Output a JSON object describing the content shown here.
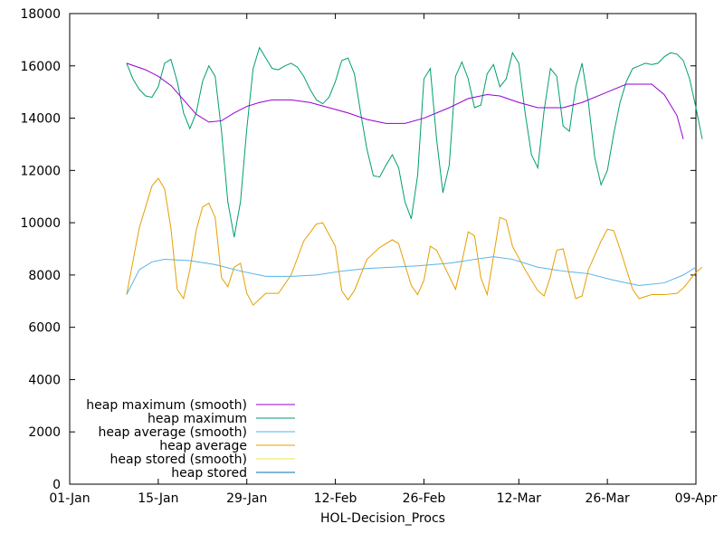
{
  "chart_data": {
    "type": "line",
    "xlabel": "HOL-Decision_Procs",
    "ylabel": "",
    "x_ticks": [
      "01-Jan",
      "15-Jan",
      "29-Jan",
      "12-Feb",
      "26-Feb",
      "12-Mar",
      "26-Mar",
      "09-Apr"
    ],
    "y_ticks": [
      "0",
      "2000",
      "4000",
      "6000",
      "8000",
      "10000",
      "12000",
      "14000",
      "16000",
      "18000"
    ],
    "xlim": [
      "01-Jan",
      "09-Apr"
    ],
    "ylim": [
      0,
      18000
    ],
    "legend_position": "bottom-left",
    "grid": false,
    "series": [
      {
        "name": "heap maximum (smooth)",
        "color": "#9400d3",
        "points": [
          [
            "10-Jan",
            16100
          ],
          [
            "13-Jan",
            15850
          ],
          [
            "15-Jan",
            15600
          ],
          [
            "17-Jan",
            15250
          ],
          [
            "19-Jan",
            14700
          ],
          [
            "21-Jan",
            14150
          ],
          [
            "23-Jan",
            13850
          ],
          [
            "25-Jan",
            13900
          ],
          [
            "27-Jan",
            14200
          ],
          [
            "29-Jan",
            14450
          ],
          [
            "31-Jan",
            14600
          ],
          [
            "02-Feb",
            14700
          ],
          [
            "05-Feb",
            14700
          ],
          [
            "08-Feb",
            14600
          ],
          [
            "11-Feb",
            14400
          ],
          [
            "14-Feb",
            14200
          ],
          [
            "17-Feb",
            13950
          ],
          [
            "20-Feb",
            13800
          ],
          [
            "23-Feb",
            13800
          ],
          [
            "26-Feb",
            14000
          ],
          [
            "01-Mar",
            14400
          ],
          [
            "04-Mar",
            14750
          ],
          [
            "07-Mar",
            14900
          ],
          [
            "09-Mar",
            14850
          ],
          [
            "12-Mar",
            14600
          ],
          [
            "15-Mar",
            14400
          ],
          [
            "19-Mar",
            14400
          ],
          [
            "22-Mar",
            14600
          ],
          [
            "26-Mar",
            15000
          ],
          [
            "29-Mar",
            15300
          ],
          [
            "02-Apr",
            15300
          ],
          [
            "04-Apr",
            14900
          ],
          [
            "06-Apr",
            14100
          ],
          [
            "07-Apr",
            13200
          ]
        ]
      },
      {
        "name": "heap maximum",
        "color": "#009e73",
        "points": [
          [
            "10-Jan",
            16100
          ],
          [
            "11-Jan",
            15500
          ],
          [
            "12-Jan",
            15100
          ],
          [
            "13-Jan",
            14850
          ],
          [
            "14-Jan",
            14800
          ],
          [
            "15-Jan",
            15200
          ],
          [
            "16-Jan",
            16100
          ],
          [
            "17-Jan",
            16250
          ],
          [
            "18-Jan",
            15400
          ],
          [
            "19-Jan",
            14200
          ],
          [
            "20-Jan",
            13600
          ],
          [
            "21-Jan",
            14200
          ],
          [
            "22-Jan",
            15400
          ],
          [
            "23-Jan",
            16000
          ],
          [
            "24-Jan",
            15600
          ],
          [
            "25-Jan",
            13500
          ],
          [
            "26-Jan",
            10800
          ],
          [
            "27-Jan",
            9450
          ],
          [
            "28-Jan",
            10800
          ],
          [
            "29-Jan",
            13600
          ],
          [
            "30-Jan",
            15900
          ],
          [
            "31-Jan",
            16700
          ],
          [
            "01-Feb",
            16300
          ],
          [
            "02-Feb",
            15900
          ],
          [
            "03-Feb",
            15850
          ],
          [
            "04-Feb",
            16000
          ],
          [
            "05-Feb",
            16100
          ],
          [
            "06-Feb",
            15950
          ],
          [
            "07-Feb",
            15600
          ],
          [
            "08-Feb",
            15100
          ],
          [
            "09-Feb",
            14700
          ],
          [
            "10-Feb",
            14550
          ],
          [
            "11-Feb",
            14800
          ],
          [
            "12-Feb",
            15400
          ],
          [
            "13-Feb",
            16200
          ],
          [
            "14-Feb",
            16300
          ],
          [
            "15-Feb",
            15700
          ],
          [
            "16-Feb",
            14200
          ],
          [
            "17-Feb",
            12800
          ],
          [
            "18-Feb",
            11800
          ],
          [
            "19-Feb",
            11750
          ],
          [
            "20-Feb",
            12200
          ],
          [
            "21-Feb",
            12600
          ],
          [
            "22-Feb",
            12100
          ],
          [
            "23-Feb",
            10800
          ],
          [
            "24-Feb",
            10150
          ],
          [
            "25-Feb",
            11800
          ],
          [
            "26-Feb",
            15500
          ],
          [
            "27-Feb",
            15900
          ],
          [
            "28-Feb",
            13200
          ],
          [
            "29-Feb",
            11150
          ],
          [
            "01-Mar",
            12200
          ],
          [
            "02-Mar",
            15600
          ],
          [
            "03-Mar",
            16150
          ],
          [
            "04-Mar",
            15500
          ],
          [
            "05-Mar",
            14400
          ],
          [
            "06-Mar",
            14500
          ],
          [
            "07-Mar",
            15700
          ],
          [
            "08-Mar",
            16050
          ],
          [
            "09-Mar",
            15200
          ],
          [
            "10-Mar",
            15500
          ],
          [
            "11-Mar",
            16500
          ],
          [
            "12-Mar",
            16100
          ],
          [
            "13-Mar",
            14200
          ],
          [
            "14-Mar",
            12600
          ],
          [
            "15-Mar",
            12100
          ],
          [
            "16-Mar",
            14300
          ],
          [
            "17-Mar",
            15900
          ],
          [
            "18-Mar",
            15600
          ],
          [
            "19-Mar",
            13700
          ],
          [
            "20-Mar",
            13500
          ],
          [
            "21-Mar",
            15200
          ],
          [
            "22-Mar",
            16100
          ],
          [
            "23-Mar",
            14600
          ],
          [
            "24-Mar",
            12500
          ],
          [
            "25-Mar",
            11450
          ],
          [
            "26-Mar",
            12000
          ],
          [
            "27-Mar",
            13400
          ],
          [
            "28-Mar",
            14600
          ],
          [
            "29-Mar",
            15400
          ],
          [
            "30-Mar",
            15900
          ],
          [
            "31-Mar",
            16000
          ],
          [
            "01-Apr",
            16100
          ],
          [
            "02-Apr",
            16050
          ],
          [
            "03-Apr",
            16100
          ],
          [
            "04-Apr",
            16350
          ],
          [
            "05-Apr",
            16500
          ],
          [
            "06-Apr",
            16450
          ],
          [
            "07-Apr",
            16200
          ],
          [
            "08-Apr",
            15500
          ],
          [
            "09-Apr",
            14400
          ],
          [
            "10-Apr",
            13200
          ]
        ]
      },
      {
        "name": "heap average (smooth)",
        "color": "#56b4e9",
        "points": [
          [
            "10-Jan",
            7250
          ],
          [
            "12-Jan",
            8200
          ],
          [
            "14-Jan",
            8500
          ],
          [
            "16-Jan",
            8600
          ],
          [
            "20-Jan",
            8550
          ],
          [
            "24-Jan",
            8400
          ],
          [
            "28-Jan",
            8150
          ],
          [
            "01-Feb",
            7950
          ],
          [
            "05-Feb",
            7950
          ],
          [
            "09-Feb",
            8000
          ],
          [
            "13-Feb",
            8150
          ],
          [
            "17-Feb",
            8250
          ],
          [
            "21-Feb",
            8300
          ],
          [
            "25-Feb",
            8350
          ],
          [
            "01-Mar",
            8450
          ],
          [
            "05-Mar",
            8600
          ],
          [
            "08-Mar",
            8700
          ],
          [
            "11-Mar",
            8600
          ],
          [
            "15-Mar",
            8300
          ],
          [
            "19-Mar",
            8150
          ],
          [
            "23-Mar",
            8050
          ],
          [
            "27-Mar",
            7800
          ],
          [
            "31-Mar",
            7600
          ],
          [
            "04-Apr",
            7700
          ],
          [
            "07-Apr",
            8000
          ],
          [
            "09-Apr",
            8300
          ]
        ]
      },
      {
        "name": "heap average",
        "color": "#e69f00",
        "points": [
          [
            "10-Jan",
            7250
          ],
          [
            "12-Jan",
            9800
          ],
          [
            "14-Jan",
            11400
          ],
          [
            "15-Jan",
            11700
          ],
          [
            "16-Jan",
            11300
          ],
          [
            "17-Jan",
            9800
          ],
          [
            "18-Jan",
            7450
          ],
          [
            "19-Jan",
            7100
          ],
          [
            "20-Jan",
            8200
          ],
          [
            "21-Jan",
            9700
          ],
          [
            "22-Jan",
            10600
          ],
          [
            "23-Jan",
            10750
          ],
          [
            "24-Jan",
            10200
          ],
          [
            "25-Jan",
            7900
          ],
          [
            "26-Jan",
            7550
          ],
          [
            "27-Jan",
            8300
          ],
          [
            "28-Jan",
            8450
          ],
          [
            "29-Jan",
            7300
          ],
          [
            "30-Jan",
            6850
          ],
          [
            "01-Feb",
            7300
          ],
          [
            "03-Feb",
            7300
          ],
          [
            "05-Feb",
            8000
          ],
          [
            "07-Feb",
            9300
          ],
          [
            "09-Feb",
            9950
          ],
          [
            "10-Feb",
            10000
          ],
          [
            "12-Feb",
            9100
          ],
          [
            "13-Feb",
            7400
          ],
          [
            "14-Feb",
            7050
          ],
          [
            "15-Feb",
            7400
          ],
          [
            "17-Feb",
            8600
          ],
          [
            "19-Feb",
            9050
          ],
          [
            "21-Feb",
            9350
          ],
          [
            "22-Feb",
            9200
          ],
          [
            "24-Feb",
            7600
          ],
          [
            "25-Feb",
            7250
          ],
          [
            "26-Feb",
            7800
          ],
          [
            "27-Feb",
            9100
          ],
          [
            "28-Feb",
            8950
          ],
          [
            "01-Mar",
            7950
          ],
          [
            "02-Mar",
            7450
          ],
          [
            "03-Mar",
            8500
          ],
          [
            "04-Mar",
            9650
          ],
          [
            "05-Mar",
            9500
          ],
          [
            "06-Mar",
            7900
          ],
          [
            "07-Mar",
            7250
          ],
          [
            "08-Mar",
            8700
          ],
          [
            "09-Mar",
            10200
          ],
          [
            "10-Mar",
            10100
          ],
          [
            "11-Mar",
            9100
          ],
          [
            "13-Mar",
            8200
          ],
          [
            "15-Mar",
            7400
          ],
          [
            "16-Mar",
            7200
          ],
          [
            "17-Mar",
            7950
          ],
          [
            "18-Mar",
            8950
          ],
          [
            "19-Mar",
            9000
          ],
          [
            "20-Mar",
            8000
          ],
          [
            "21-Mar",
            7100
          ],
          [
            "22-Mar",
            7200
          ],
          [
            "23-Mar",
            8200
          ],
          [
            "25-Mar",
            9300
          ],
          [
            "26-Mar",
            9750
          ],
          [
            "27-Mar",
            9700
          ],
          [
            "28-Mar",
            9000
          ],
          [
            "30-Mar",
            7450
          ],
          [
            "31-Mar",
            7100
          ],
          [
            "02-Apr",
            7250
          ],
          [
            "04-Apr",
            7250
          ],
          [
            "06-Apr",
            7300
          ],
          [
            "07-Apr",
            7500
          ],
          [
            "09-Apr",
            8100
          ],
          [
            "10-Apr",
            8300
          ]
        ]
      },
      {
        "name": "heap stored (smooth)",
        "color": "#f0e442",
        "points": []
      },
      {
        "name": "heap stored",
        "color": "#0072b2",
        "points": []
      }
    ]
  }
}
